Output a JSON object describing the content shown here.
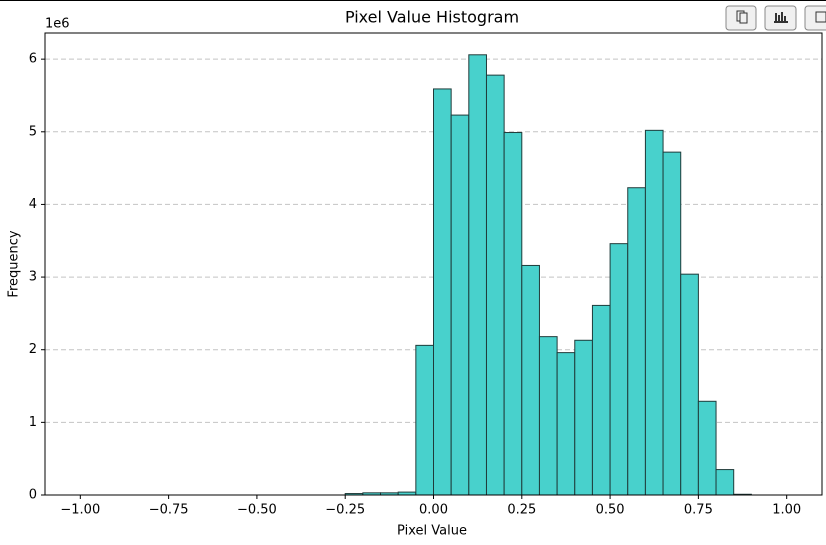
{
  "chart_data": {
    "type": "histogram",
    "title": "Pixel Value Histogram",
    "x_label": "Pixel Value",
    "y_label": "Frequency",
    "y_offset_label": "1e6",
    "bins": [
      -1,
      -0.95,
      -0.9,
      -0.85,
      -0.8,
      -0.75,
      -0.7,
      -0.65,
      -0.6,
      -0.55,
      -0.5,
      -0.45,
      -0.4,
      -0.35,
      -0.3,
      -0.25,
      -0.2,
      -0.15,
      -0.1,
      -0.05,
      0,
      0.05,
      0.1,
      0.15,
      0.2,
      0.25,
      0.3,
      0.35,
      0.4,
      0.45,
      0.5,
      0.55,
      0.6,
      0.65,
      0.7,
      0.75,
      0.8,
      0.85,
      0.9,
      0.95,
      1
    ],
    "values": [
      0,
      0,
      0,
      0,
      0,
      0,
      0,
      0,
      0,
      0,
      0,
      0,
      0,
      0,
      0,
      0.02,
      0.03,
      0.03,
      0.04,
      2.06,
      5.59,
      5.23,
      6.06,
      5.78,
      4.99,
      3.16,
      2.18,
      1.96,
      2.13,
      2.61,
      3.46,
      4.23,
      5.02,
      4.72,
      3.04,
      1.29,
      0.35,
      0.01,
      0,
      0
    ],
    "color": "#48d1cc",
    "edgecolor": "#1f3b3a",
    "xlim": [
      -1.1,
      1.1
    ],
    "ylim": [
      0,
      6.36
    ],
    "xticks": [
      {
        "value": -1,
        "label": "−1.00"
      },
      {
        "value": -0.75,
        "label": "−0.75"
      },
      {
        "value": -0.5,
        "label": "−0.50"
      },
      {
        "value": -0.25,
        "label": "−0.25"
      },
      {
        "value": 0,
        "label": "0.00"
      },
      {
        "value": 0.25,
        "label": "0.25"
      },
      {
        "value": 0.5,
        "label": "0.50"
      },
      {
        "value": 0.75,
        "label": "0.75"
      },
      {
        "value": 1,
        "label": "1.00"
      }
    ],
    "yticks": [
      0,
      1,
      2,
      3,
      4,
      5,
      6
    ],
    "grid": true
  }
}
